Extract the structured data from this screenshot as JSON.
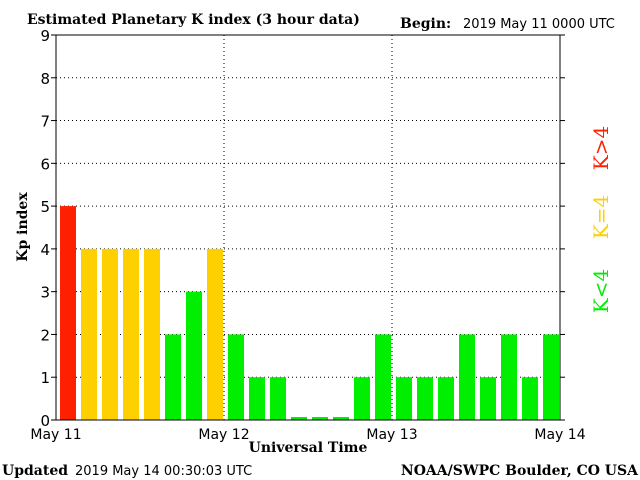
{
  "header": {
    "title": "Estimated Planetary K index (3 hour data)",
    "begin_label": "Begin:",
    "begin_value": "2019 May 11 0000 UTC"
  },
  "footer": {
    "updated_label": "Updated",
    "updated_value": "2019 May 14 00:30:03 UTC",
    "source": "NOAA/SWPC Boulder, CO USA"
  },
  "legend": {
    "above": {
      "label": "K>4",
      "color": "#ff2000"
    },
    "equal": {
      "label": "K=4",
      "color": "#ffd000"
    },
    "below": {
      "label": "K<4",
      "color": "#00ee00"
    }
  },
  "chart_data": {
    "type": "bar",
    "title": "Estimated Planetary K index (3 hour data)",
    "xlabel": "Universal Time",
    "ylabel": "Kp index",
    "ylim": [
      0,
      9
    ],
    "yticks": [
      0,
      1,
      2,
      3,
      4,
      5,
      6,
      7,
      8,
      9
    ],
    "xticks": [
      "May 11",
      "May 12",
      "May 13",
      "May 14"
    ],
    "grid": true,
    "bars_per_day": 8,
    "series": [
      {
        "values": [
          5,
          4,
          4,
          4,
          4,
          2,
          3,
          4,
          2,
          1,
          1,
          0.07,
          0.07,
          0.07,
          1,
          2,
          1,
          1,
          1,
          2,
          1,
          2,
          1,
          2
        ]
      }
    ]
  }
}
